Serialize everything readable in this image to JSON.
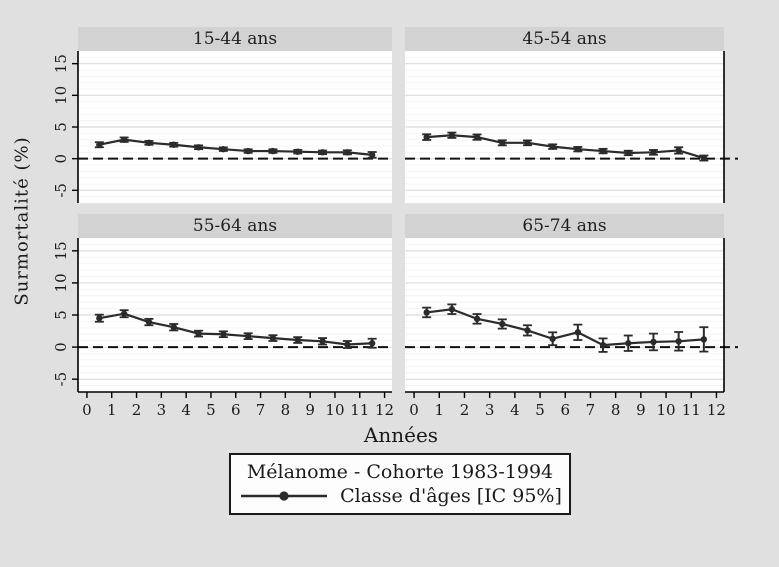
{
  "style": {
    "background": "#e0e0e0",
    "band_color": "#d2d2d2",
    "plot_bg": "#ffffff",
    "grid_major": "#dcdcdc",
    "grid_minor": "#f4f4f4",
    "series_color": "#2b2b2b",
    "axis_color": "#000000",
    "zero_line_color": "#111111"
  },
  "legend": {
    "title": "Mélanome - Cohorte 1983-1994",
    "entry": "Classe d'âges [IC 95%]"
  },
  "chart_data": {
    "type": "line",
    "title": "",
    "xlabel": "Années",
    "ylabel": "Surmortalité (%)",
    "x_ticks": [
      0,
      1,
      2,
      3,
      4,
      5,
      6,
      7,
      8,
      9,
      10,
      11,
      12
    ],
    "y_ticks": [
      15,
      10,
      5,
      0,
      -5
    ],
    "xlim": [
      -0.36,
      12.3
    ],
    "ylim": [
      -7,
      17
    ],
    "grid": true,
    "reference_line_y": 0,
    "legend_position": "bottom",
    "x": [
      0.5,
      1.5,
      2.5,
      3.5,
      4.5,
      5.5,
      6.5,
      7.5,
      8.5,
      9.5,
      10.5,
      11.5
    ],
    "panels": [
      {
        "title": "15-44 ans",
        "values": [
          2.2,
          3.0,
          2.5,
          2.2,
          1.8,
          1.5,
          1.2,
          1.2,
          1.1,
          1.0,
          1.0,
          0.6
        ],
        "ci_half": [
          0.4,
          0.35,
          0.3,
          0.3,
          0.3,
          0.28,
          0.28,
          0.28,
          0.28,
          0.28,
          0.32,
          0.45
        ]
      },
      {
        "title": "45-54 ans",
        "values": [
          3.4,
          3.7,
          3.4,
          2.5,
          2.5,
          1.9,
          1.5,
          1.2,
          0.9,
          1.0,
          1.3,
          0.1
        ],
        "ci_half": [
          0.45,
          0.42,
          0.42,
          0.4,
          0.38,
          0.36,
          0.35,
          0.35,
          0.35,
          0.38,
          0.5,
          0.4
        ]
      },
      {
        "title": "55-64 ans",
        "values": [
          4.5,
          5.2,
          3.9,
          3.1,
          2.1,
          2.0,
          1.7,
          1.4,
          1.1,
          0.9,
          0.4,
          0.6
        ],
        "ci_half": [
          0.55,
          0.55,
          0.5,
          0.5,
          0.45,
          0.45,
          0.45,
          0.45,
          0.45,
          0.5,
          0.55,
          0.7
        ]
      },
      {
        "title": "65-74 ans",
        "values": [
          5.4,
          5.9,
          4.4,
          3.6,
          2.6,
          1.3,
          2.3,
          0.3,
          0.6,
          0.8,
          0.9,
          1.2
        ],
        "ci_half": [
          0.75,
          0.75,
          0.75,
          0.72,
          0.8,
          1.0,
          1.2,
          1.05,
          1.2,
          1.3,
          1.45,
          1.9
        ]
      }
    ]
  }
}
